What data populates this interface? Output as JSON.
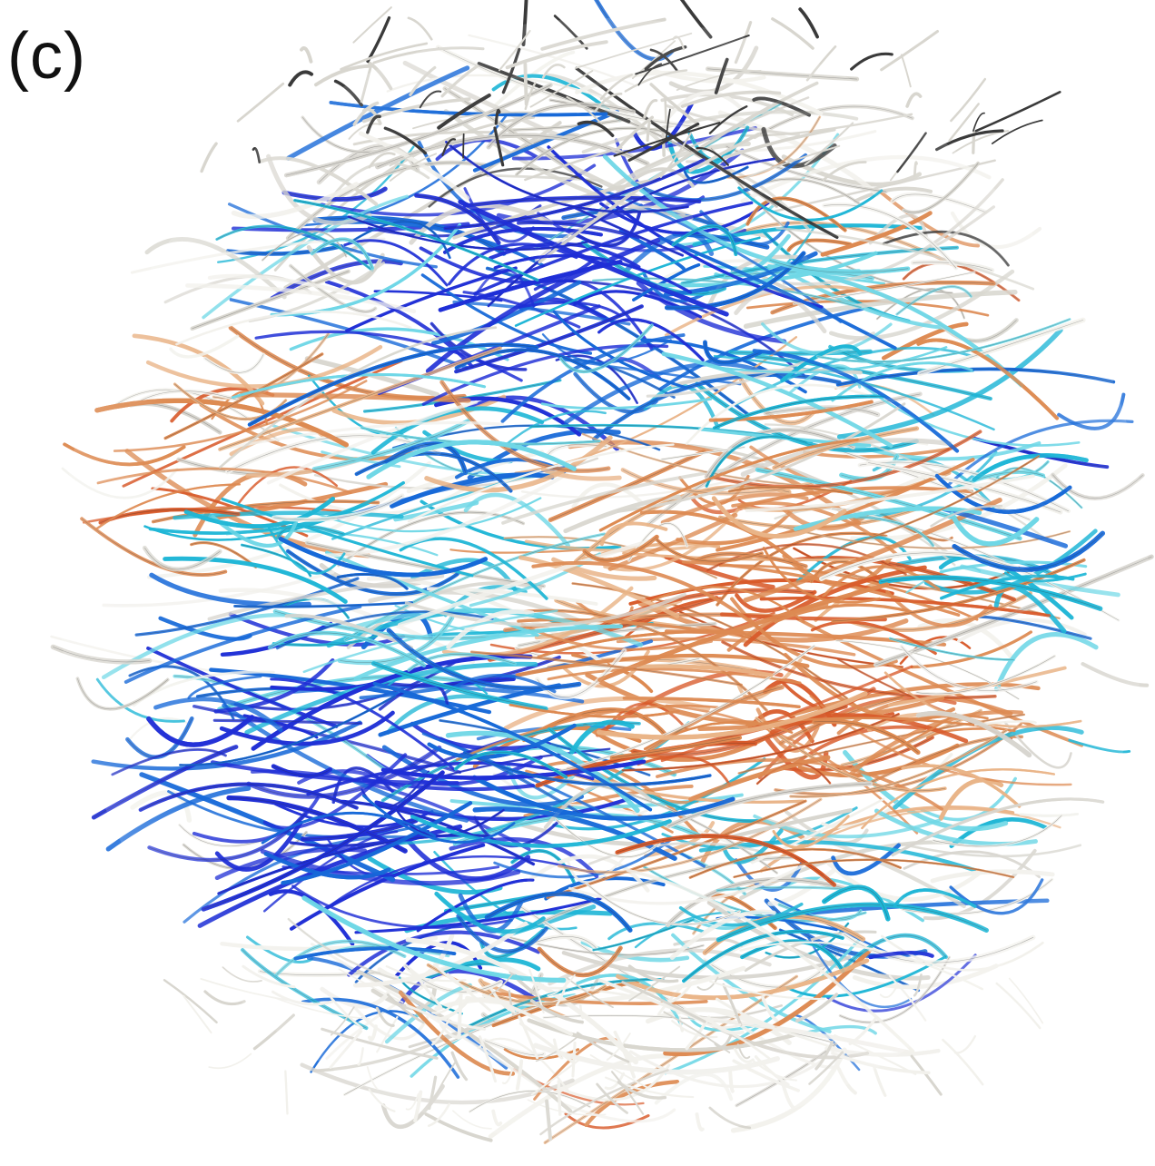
{
  "panel_label": "(c)",
  "figure": {
    "palette": {
      "deep_blue": "#1f2fd6",
      "blue": "#1769d8",
      "cyan": "#1fb6d6",
      "light_cyan": "#6fd7e6",
      "white": "#f2f1ec",
      "light_gray": "#d8d6cf",
      "gray": "#9a9893",
      "dark_gray": "#3a3a3a",
      "peach": "#e9b488",
      "orange": "#dd8a52",
      "red_orange": "#d85a2a"
    }
  }
}
